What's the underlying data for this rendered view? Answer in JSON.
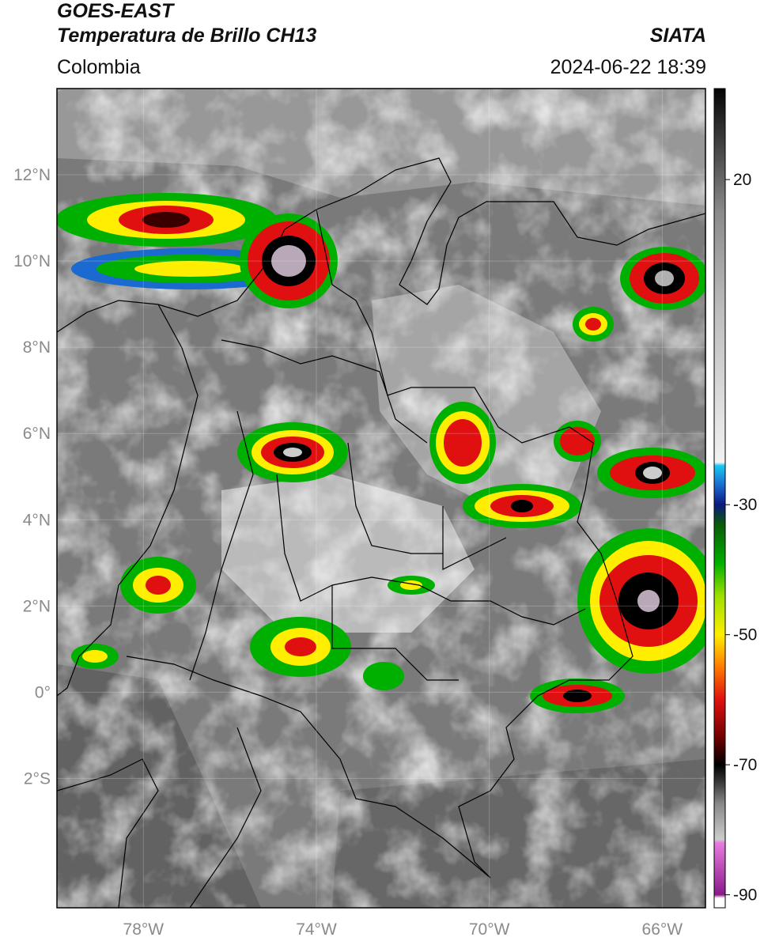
{
  "header": {
    "satellite": "GOES-EAST",
    "product": "Temperatura de Brillo CH13",
    "organization": "SIATA",
    "region": "Colombia",
    "datetime": "2024-06-22 18:39"
  },
  "map": {
    "lon_range": [
      -80,
      -65
    ],
    "lat_range": [
      -5,
      14
    ],
    "lat_ticks": [
      {
        "value": 12,
        "label": "12°N"
      },
      {
        "value": 10,
        "label": "10°N"
      },
      {
        "value": 8,
        "label": "8°N"
      },
      {
        "value": 6,
        "label": "6°N"
      },
      {
        "value": 4,
        "label": "4°N"
      },
      {
        "value": 2,
        "label": "2°N"
      },
      {
        "value": 0,
        "label": "0°"
      },
      {
        "value": -2,
        "label": "2°S"
      }
    ],
    "lon_ticks": [
      {
        "value": -78,
        "label": "78°W"
      },
      {
        "value": -74,
        "label": "74°W"
      },
      {
        "value": -70,
        "label": "70°W"
      },
      {
        "value": -66,
        "label": "66°W"
      }
    ],
    "gridlines": true
  },
  "colorbar": {
    "range": [
      -92,
      34
    ],
    "ticks": [
      {
        "value": 20,
        "label": "20"
      },
      {
        "value": -30,
        "label": "-30"
      },
      {
        "value": -50,
        "label": "-50"
      },
      {
        "value": -70,
        "label": "-70"
      },
      {
        "value": -90,
        "label": "-90"
      }
    ],
    "stops": [
      {
        "value": -92,
        "color": "#ffffff"
      },
      {
        "value": -90.5,
        "color": "#ffffff"
      },
      {
        "value": -90,
        "color": "#8a1a8a"
      },
      {
        "value": -82,
        "color": "#e87be0"
      },
      {
        "value": -81.5,
        "color": "#cccccc"
      },
      {
        "value": -76,
        "color": "#888888"
      },
      {
        "value": -72,
        "color": "#2a2a2a"
      },
      {
        "value": -70,
        "color": "#000000"
      },
      {
        "value": -66,
        "color": "#6b0000"
      },
      {
        "value": -60,
        "color": "#e01010"
      },
      {
        "value": -55,
        "color": "#ff7a00"
      },
      {
        "value": -50,
        "color": "#ffee00"
      },
      {
        "value": -44,
        "color": "#9be000"
      },
      {
        "value": -39,
        "color": "#00b000"
      },
      {
        "value": -33,
        "color": "#0a5a0a"
      },
      {
        "value": -30,
        "color": "#0a1a80"
      },
      {
        "value": -27,
        "color": "#1a6ad0"
      },
      {
        "value": -24,
        "color": "#18c8f0"
      },
      {
        "value": -23.5,
        "color": "#f2f2f2"
      },
      {
        "value": 0,
        "color": "#bdbdbd"
      },
      {
        "value": 15,
        "color": "#8a8a8a"
      },
      {
        "value": 34,
        "color": "#050505"
      }
    ]
  }
}
